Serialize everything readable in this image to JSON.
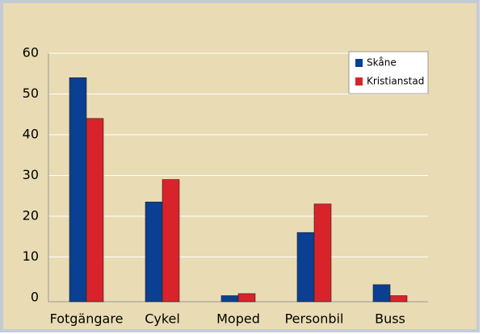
{
  "chart_data": {
    "type": "bar",
    "categories": [
      "Fotgängare",
      "Cykel",
      "Moped",
      "Personbil",
      "Buss"
    ],
    "series": [
      {
        "name": "Skåne",
        "color": "#0b3f91",
        "values": [
          54,
          23.5,
          0.5,
          16,
          3.2
        ]
      },
      {
        "name": "Kristianstad",
        "color": "#d8232a",
        "values": [
          44,
          29,
          1,
          23,
          0.5
        ]
      }
    ],
    "ylim": [
      0,
      60
    ],
    "yticks": [
      0,
      10,
      20,
      30,
      40,
      50,
      60
    ],
    "grid": true,
    "legend": "upper right"
  }
}
